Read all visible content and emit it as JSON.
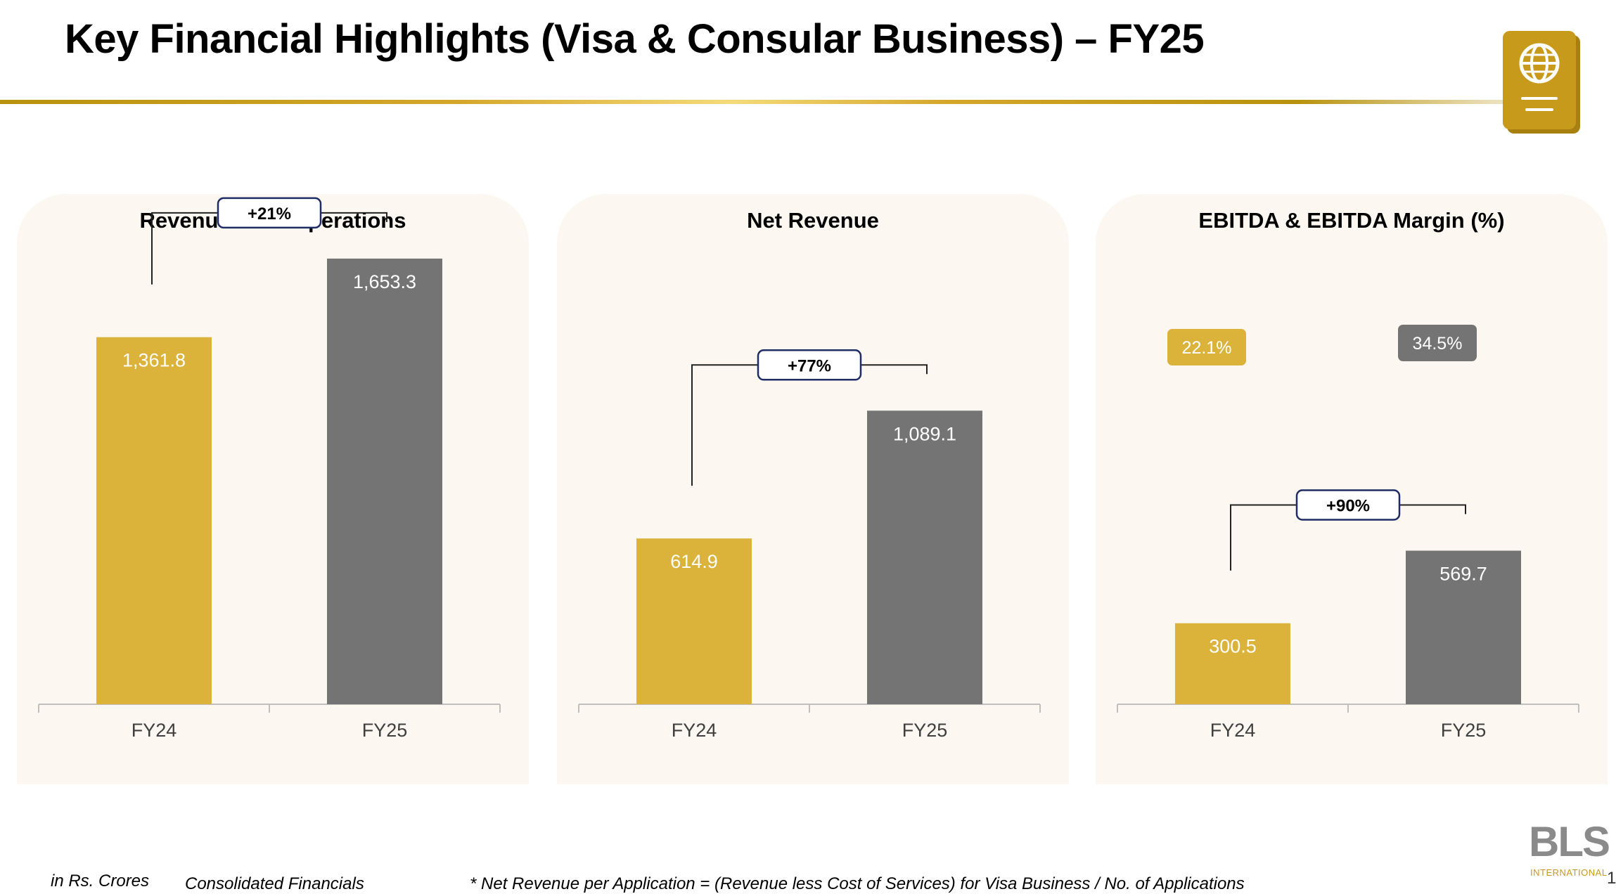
{
  "title": "Key Financial Highlights (Visa & Consular Business) – FY25",
  "colors": {
    "fy24": "#dbb33b",
    "fy25": "#747474",
    "accent": "#c79a1b",
    "pill_border": "#1f2d66"
  },
  "chart_data": [
    {
      "type": "bar",
      "title": "Revenue from Operations",
      "categories": [
        "FY24",
        "FY25"
      ],
      "values": [
        1361.8,
        1653.3
      ],
      "value_labels": [
        "1,361.8",
        "1,653.3"
      ],
      "ylim": [
        0,
        1700
      ],
      "growth_label": "+21%",
      "xlabel": "",
      "ylabel": "",
      "grid": false
    },
    {
      "type": "bar",
      "title": "Net Revenue",
      "categories": [
        "FY24",
        "FY25"
      ],
      "values": [
        614.9,
        1089.1
      ],
      "value_labels": [
        "614.9",
        "1,089.1"
      ],
      "ylim": [
        0,
        1700
      ],
      "growth_label": "+77%",
      "xlabel": "",
      "ylabel": "",
      "grid": false
    },
    {
      "type": "bar",
      "title": "EBITDA & EBITDA Margin (%)",
      "categories": [
        "FY24",
        "FY25"
      ],
      "values": [
        300.5,
        569.7
      ],
      "value_labels": [
        "300.5",
        "569.7"
      ],
      "margins": [
        "22.1%",
        "34.5%"
      ],
      "ylim": [
        0,
        1700
      ],
      "growth_label": "+90%",
      "xlabel": "",
      "ylabel": "",
      "grid": false
    }
  ],
  "footer": {
    "units": "in Rs. Crores",
    "basis": "Consolidated Financials",
    "note": "* Net Revenue per Application = (Revenue less Cost of Services) for Visa Business / No. of Applications"
  },
  "logo": {
    "text": "BLS",
    "subtitle": "INTERNATIONAL"
  },
  "page_number": "1"
}
